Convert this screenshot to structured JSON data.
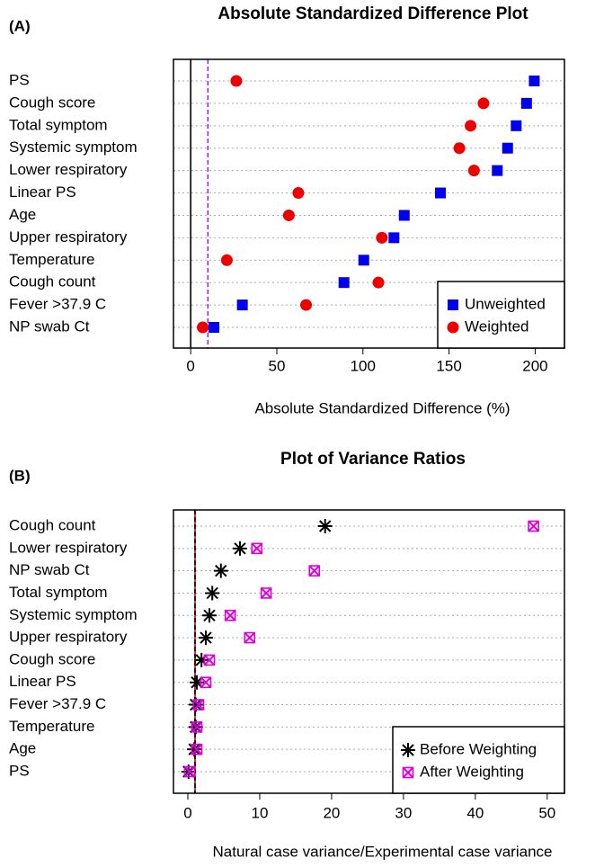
{
  "chart_data": [
    {
      "type": "dot",
      "panel": "(A)",
      "title": "Absolute Standardized Difference Plot",
      "xlabel": "Absolute Standardized Difference (%)",
      "categories": [
        "PS",
        "Cough score",
        "Total symptom",
        "Systemic symptom",
        "Lower respiratory",
        "Linear PS",
        "Age",
        "Upper respiratory",
        "Temperature",
        "Cough count",
        "Fever >37.9 C",
        "NP swab Ct"
      ],
      "series": [
        {
          "name": "Unweighted",
          "color": "#0000ee",
          "marker": "square",
          "values": [
            199.5,
            195,
            189,
            184,
            178,
            145,
            124,
            118,
            100.5,
            89,
            30,
            13.5
          ]
        },
        {
          "name": "Weighted",
          "color": "#ee0000",
          "marker": "circle",
          "values": [
            26.5,
            170,
            162.5,
            156,
            164.5,
            62.5,
            57,
            111,
            21,
            109,
            67,
            7
          ]
        }
      ],
      "xlim": [
        -10,
        217
      ],
      "xticks": [
        0,
        50,
        100,
        150,
        200
      ],
      "ref_lines": [
        {
          "value": 0,
          "color": "#000000",
          "style": "solid"
        },
        {
          "value": 10,
          "color": "#a020f0",
          "style": "dashed"
        }
      ],
      "grid": true,
      "legend": "bottom-right"
    },
    {
      "type": "dot",
      "panel": "(B)",
      "title": "Plot of Variance Ratios",
      "xlabel": "Natural case variance/Experimental case variance",
      "categories": [
        "Cough count",
        "Lower respiratory",
        "NP swab Ct",
        "Total symptom",
        "Systemic symptom",
        "Upper respiratory",
        "Cough score",
        "Linear PS",
        "Fever >37.9 C",
        "Temperature",
        "Age",
        "PS"
      ],
      "series": [
        {
          "name": "Before Weighting",
          "color": "#000000",
          "marker": "asterisk",
          "values": [
            19.1,
            7.25,
            4.6,
            3.4,
            3,
            2.5,
            1.9,
            1.25,
            1.1,
            1.1,
            0.9,
            0.1
          ]
        },
        {
          "name": "After Weighting",
          "color": "#dd00dd",
          "marker": "boxx",
          "values": [
            48.1,
            9.6,
            17.6,
            10.9,
            5.9,
            8.6,
            3,
            2.5,
            1.5,
            1.25,
            1.25,
            0.25
          ]
        }
      ],
      "xlim": [
        -2,
        52.4
      ],
      "xticks": [
        0,
        10,
        20,
        30,
        40,
        50
      ],
      "ref_lines": [
        {
          "value": 1,
          "color": "#cc0000",
          "style": "solid"
        },
        {
          "value": 1,
          "color": "#000000",
          "style": "dashed"
        }
      ],
      "grid": true,
      "legend": "bottom-right"
    }
  ]
}
